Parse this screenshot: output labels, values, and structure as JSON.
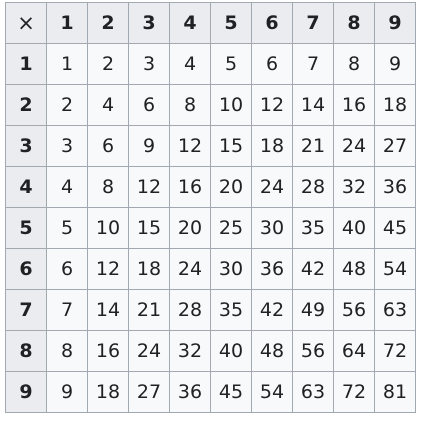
{
  "table": {
    "corner": "×",
    "column_headers": [
      "1",
      "2",
      "3",
      "4",
      "5",
      "6",
      "7",
      "8",
      "9"
    ],
    "rows": [
      {
        "header": "1",
        "cells": [
          "1",
          "2",
          "3",
          "4",
          "5",
          "6",
          "7",
          "8",
          "9"
        ]
      },
      {
        "header": "2",
        "cells": [
          "2",
          "4",
          "6",
          "8",
          "10",
          "12",
          "14",
          "16",
          "18"
        ]
      },
      {
        "header": "3",
        "cells": [
          "3",
          "6",
          "9",
          "12",
          "15",
          "18",
          "21",
          "24",
          "27"
        ]
      },
      {
        "header": "4",
        "cells": [
          "4",
          "8",
          "12",
          "16",
          "20",
          "24",
          "28",
          "32",
          "36"
        ]
      },
      {
        "header": "5",
        "cells": [
          "5",
          "10",
          "15",
          "20",
          "25",
          "30",
          "35",
          "40",
          "45"
        ]
      },
      {
        "header": "6",
        "cells": [
          "6",
          "12",
          "18",
          "24",
          "30",
          "36",
          "42",
          "48",
          "54"
        ]
      },
      {
        "header": "7",
        "cells": [
          "7",
          "14",
          "21",
          "28",
          "35",
          "42",
          "49",
          "56",
          "63"
        ]
      },
      {
        "header": "8",
        "cells": [
          "8",
          "16",
          "24",
          "32",
          "40",
          "48",
          "56",
          "64",
          "72"
        ]
      },
      {
        "header": "9",
        "cells": [
          "9",
          "18",
          "27",
          "36",
          "45",
          "54",
          "63",
          "72",
          "81"
        ]
      }
    ]
  },
  "colors": {
    "header_background": "#eaecf0",
    "cell_background": "#f8f9fa",
    "border": "#a2a9b1",
    "text": "#202122"
  }
}
